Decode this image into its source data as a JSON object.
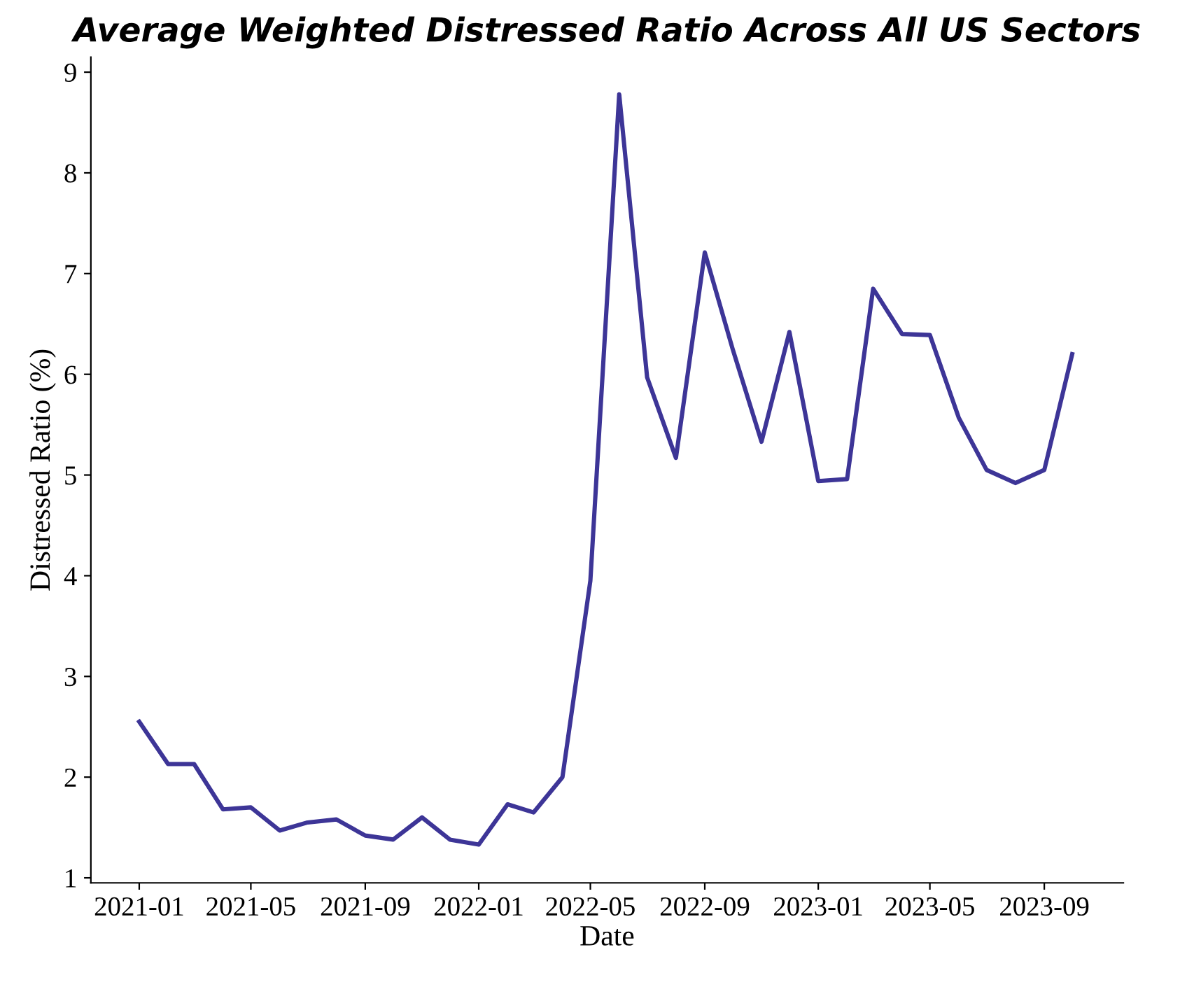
{
  "chart_data": {
    "type": "line",
    "title": "Average Weighted Distressed Ratio Across All US Sectors",
    "xlabel": "Date",
    "ylabel": "Distressed Ratio (%)",
    "x": [
      "2021-01",
      "2021-02",
      "2021-03",
      "2021-04",
      "2021-05",
      "2021-06",
      "2021-07",
      "2021-08",
      "2021-09",
      "2021-10",
      "2021-11",
      "2021-12",
      "2022-01",
      "2022-02",
      "2022-03",
      "2022-04",
      "2022-05",
      "2022-06",
      "2022-07",
      "2022-08",
      "2022-09",
      "2022-10",
      "2022-11",
      "2022-12",
      "2023-01",
      "2023-02",
      "2023-03",
      "2023-04",
      "2023-05",
      "2023-06",
      "2023-07",
      "2023-08",
      "2023-09",
      "2023-10"
    ],
    "series": [
      {
        "color": "#3d3597",
        "values": [
          2.55,
          2.13,
          2.13,
          1.68,
          1.7,
          1.47,
          1.55,
          1.58,
          1.42,
          1.38,
          1.6,
          1.38,
          1.33,
          1.73,
          1.65,
          2.0,
          3.95,
          8.78,
          5.97,
          5.17,
          7.21,
          6.25,
          5.33,
          6.42,
          4.94,
          4.96,
          6.85,
          6.4,
          6.39,
          5.57,
          5.05,
          4.92,
          5.05,
          6.2
        ]
      }
    ],
    "xlim": [
      "2020-11-10",
      "2023-11-25"
    ],
    "ylim": [
      0.95,
      9.15
    ],
    "xticks": [
      {
        "value": "2021-01",
        "label": "2021-01"
      },
      {
        "value": "2021-05",
        "label": "2021-05"
      },
      {
        "value": "2021-09",
        "label": "2021-09"
      },
      {
        "value": "2022-01",
        "label": "2022-01"
      },
      {
        "value": "2022-05",
        "label": "2022-05"
      },
      {
        "value": "2022-09",
        "label": "2022-09"
      },
      {
        "value": "2023-01",
        "label": "2023-01"
      },
      {
        "value": "2023-05",
        "label": "2023-05"
      },
      {
        "value": "2023-09",
        "label": "2023-09"
      }
    ],
    "yticks": [
      1,
      2,
      3,
      4,
      5,
      6,
      7,
      8,
      9
    ],
    "grid": false,
    "marker": "none",
    "line_style": "solid",
    "legend": false
  }
}
